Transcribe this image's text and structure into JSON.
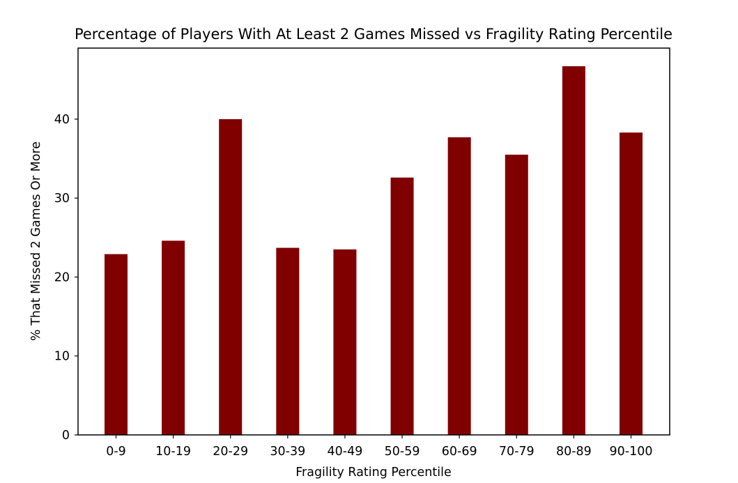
{
  "chart_data": {
    "type": "bar",
    "title": "Percentage of Players With At Least 2 Games Missed vs Fragility Rating Percentile",
    "xlabel": "Fragility Rating Percentile",
    "ylabel": "% That Missed 2 Games Or More",
    "categories": [
      "0-9",
      "10-19",
      "20-29",
      "30-39",
      "40-49",
      "50-59",
      "60-69",
      "70-79",
      "80-89",
      "90-100"
    ],
    "values": [
      22.9,
      24.6,
      40.0,
      23.7,
      23.5,
      32.6,
      37.7,
      35.5,
      46.7,
      38.3
    ],
    "ylim": [
      0,
      49
    ],
    "yticks": [
      0,
      10,
      20,
      30,
      40
    ],
    "ytick_labels": [
      "0",
      "10",
      "20",
      "30",
      "40"
    ],
    "bar_color": "#800000",
    "grid": false,
    "legend": false
  }
}
